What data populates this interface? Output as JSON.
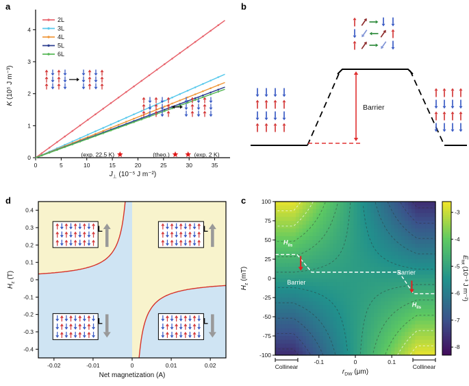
{
  "panel_labels": {
    "a": "a",
    "b": "b",
    "c": "c",
    "d": "d"
  },
  "spin_colors": {
    "up": "#d43a3a",
    "down": "#3a5bc4",
    "tilt_up": "#8c2a2a",
    "tilt_down": "#7f93d6",
    "transverse": "#2e8b3c",
    "neel_arrow": "#999999"
  },
  "chart_data": [
    {
      "panel": "a",
      "type": "line",
      "xlabel": "J⊥ (10⁻⁵ J m⁻²)",
      "ylabel": "K (10⁵ J m⁻³)",
      "xlabel_parts": {
        "main": "J",
        "sub": "⊥",
        "rest": " (10⁻⁵ J m⁻²)"
      },
      "ylabel_parts": {
        "main": "K",
        "rest": " (10⁵ J m⁻³)"
      },
      "xlim": [
        0,
        38
      ],
      "ylim": [
        0,
        4.5
      ],
      "xticks": [
        0,
        5,
        10,
        15,
        20,
        25,
        30,
        35
      ],
      "yticks": [
        0,
        1,
        2,
        3,
        4
      ],
      "series": [
        {
          "name": "2L",
          "color": "#e8656e",
          "slope": 0.116,
          "x_end": 37
        },
        {
          "name": "3L",
          "color": "#59c9ec",
          "slope": 0.0705,
          "x_end": 37
        },
        {
          "name": "4L",
          "color": "#f09a3e",
          "slope": 0.0635,
          "x_end": 37
        },
        {
          "name": "5L",
          "color": "#2c3e8f",
          "slope": 0.0596,
          "x_end": 37
        },
        {
          "name": "6L",
          "color": "#57b757",
          "slope": 0.0578,
          "x_end": 37
        }
      ],
      "stars": {
        "color": "#e01919",
        "y": 0.1,
        "x": [
          16.5,
          27.3,
          29.8
        ]
      },
      "annotations": [
        {
          "text": "(exp. 22.5 K)",
          "x": 15.4,
          "anchor": "end"
        },
        {
          "text": "(theo.)",
          "x": 26.2,
          "anchor": "end"
        },
        {
          "text": "(exp. 2 K)",
          "x": 31.0,
          "anchor": "start"
        }
      ]
    },
    {
      "panel": "b",
      "type": "diagram",
      "barrier_label": "Barrier",
      "left_rows": [
        "down",
        "up",
        "down",
        "up"
      ],
      "right_rows": [
        "up",
        "down",
        "up",
        "down"
      ],
      "top_rows": [
        [
          "up",
          "ne",
          "right",
          "down",
          "down"
        ],
        [
          "down",
          "sw",
          "left",
          "ne",
          "up"
        ],
        [
          "up",
          "ne",
          "right",
          "sw",
          "down"
        ]
      ]
    },
    {
      "panel": "c",
      "type": "heatmap",
      "xlabel_parts": {
        "main": "r",
        "sub": "DW",
        "rest": " (μm)"
      },
      "ylabel_parts": {
        "main": "H",
        "sub": "z",
        "rest": " (mT)"
      },
      "cbar_label_parts": {
        "main": "E",
        "sub": "tot",
        "rest": " (10⁻³ J m⁻²)"
      },
      "xlim": [
        -0.22,
        0.22
      ],
      "ylim": [
        -100,
        100
      ],
      "xticks": [
        -0.1,
        0,
        0.1
      ],
      "yticks": [
        100,
        75,
        50,
        25,
        0,
        -25,
        -50,
        -75,
        -100
      ],
      "cbar_ticks": [
        -3,
        -4,
        -5,
        -6,
        -7,
        -8
      ],
      "cbar_range": [
        -2.6,
        -8.3
      ],
      "model": {
        "base": -5.2,
        "amplitude": 2.5,
        "x_sat": 0.17
      },
      "contour_levels": [
        -7.5,
        -7,
        -6.5,
        -6,
        -5.5,
        -5,
        -4.5,
        -4,
        -3.5,
        -3
      ],
      "barrier_path": [
        [
          -0.22,
          31
        ],
        [
          -0.16,
          31
        ],
        [
          -0.12,
          8
        ],
        [
          0.12,
          8
        ],
        [
          0.16,
          -20
        ],
        [
          0.22,
          -20
        ]
      ],
      "red_arrows": [
        {
          "x": -0.15,
          "y1": 29,
          "y2": 10
        },
        {
          "x": 0.155,
          "y1": -3,
          "y2": -19
        }
      ],
      "field_label": {
        "main": "H",
        "sub": "ils"
      },
      "field_label_positions": [
        {
          "x": -0.185,
          "y": 44
        },
        {
          "x": 0.168,
          "y": -37
        }
      ],
      "barrier_label": "Barrier",
      "barrier_label_positions": [
        {
          "x": -0.162,
          "y": -8
        },
        {
          "x": 0.14,
          "y": 5
        }
      ],
      "collinear_label": "Collinear",
      "collinear_spans": [
        [
          -0.22,
          -0.158
        ],
        [
          0.158,
          0.22
        ]
      ]
    },
    {
      "panel": "d",
      "type": "region",
      "xlabel": "Net magnetization (A)",
      "ylabel_parts": {
        "main": "H",
        "sub": "z",
        "rest": " (T)"
      },
      "xlim": [
        -0.024,
        0.024
      ],
      "ylim": [
        -0.45,
        0.45
      ],
      "xticks": [
        -0.02,
        -0.01,
        0,
        0.01,
        0.02
      ],
      "yticks": [
        0.4,
        0.3,
        0.2,
        0.1,
        0,
        -0.1,
        -0.2,
        -0.3,
        -0.4
      ],
      "curve_constant": 0.0008,
      "curve_color": "#d63229",
      "region_colors": {
        "upper": "#f8f3cc",
        "lower": "#cfe4f3"
      },
      "neel_label": "L",
      "insets": [
        {
          "x_center": -0.0145,
          "y_center": 0.26,
          "neel": "up"
        },
        {
          "x_center": 0.0125,
          "y_center": 0.26,
          "neel": "up"
        },
        {
          "x_center": -0.0145,
          "y_center": -0.27,
          "neel": "down"
        },
        {
          "x_center": 0.0125,
          "y_center": -0.27,
          "neel": "down"
        }
      ]
    }
  ]
}
